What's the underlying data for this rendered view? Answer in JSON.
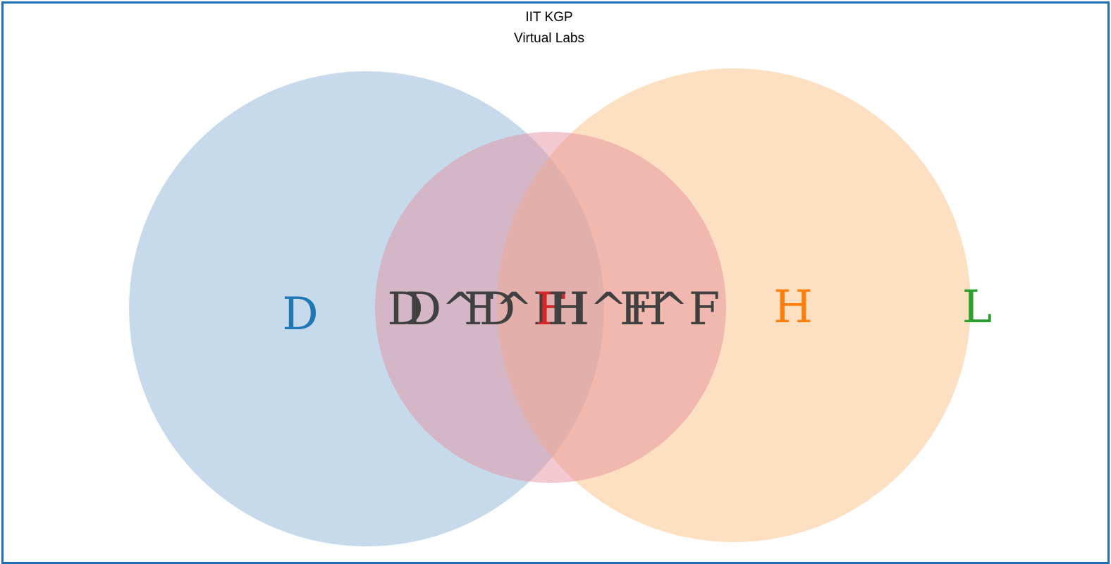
{
  "header": {
    "line1": "IIT KGP",
    "line2": "Virtual Labs"
  },
  "colors": {
    "border": "#1f6fb4",
    "circle_left": "#8db6d9",
    "circle_middle": "#e48f9c",
    "circle_right": "#fcc58e",
    "label_dark": "#404040",
    "label_blue": "#1f77b4",
    "label_orange": "#ff7f0e",
    "label_green": "#2ca02c",
    "label_red": "#d62728"
  },
  "labels": {
    "left_only": "D",
    "right_only": "H",
    "outside": "L",
    "overlap_1": "D",
    "overlap_2": "D^D",
    "overlap_3": "F^F",
    "overlap_center": "F",
    "overlap_4": "H",
    "overlap_5": "H^H",
    "overlap_6": "F^F"
  }
}
